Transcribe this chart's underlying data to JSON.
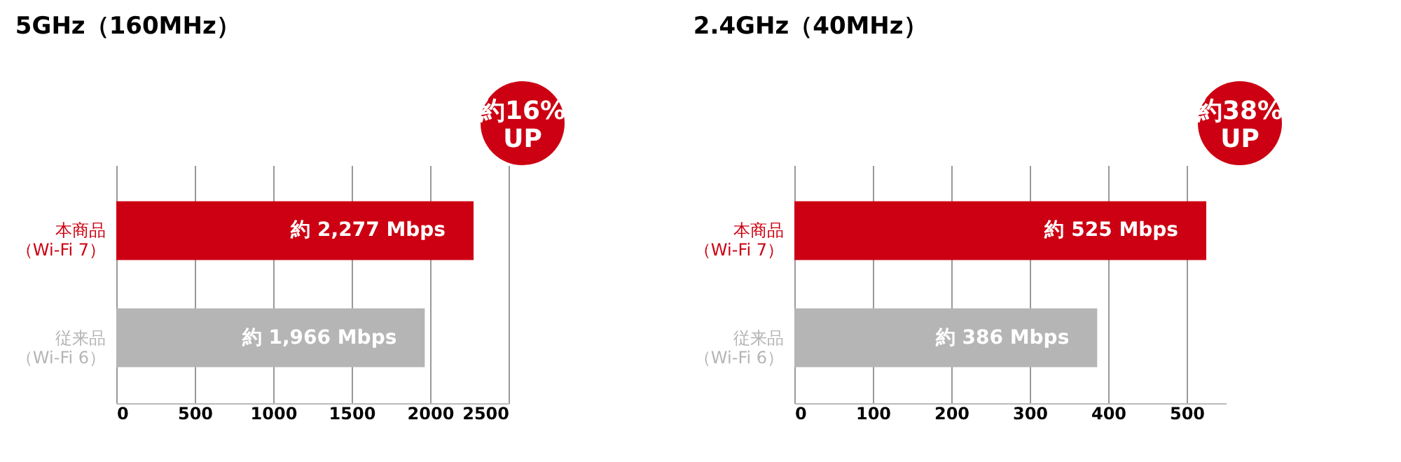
{
  "chart_data": [
    {
      "type": "bar",
      "orientation": "horizontal",
      "title": "5GHz（160MHz）",
      "categories": [
        "本商品（Wi-Fi 7）",
        "従来品（Wi-Fi 6）"
      ],
      "values": [
        2277,
        1966
      ],
      "colors": [
        "#cc0012",
        "#b5b5b5"
      ],
      "value_labels": [
        "約 2,277 Mbps",
        "約 1,966 Mbps"
      ],
      "xlim": [
        0,
        2500
      ],
      "xticks": [
        0,
        500,
        1000,
        1500,
        2000,
        2500
      ],
      "grid": "x",
      "annotations": [
        "約16% UP"
      ]
    },
    {
      "type": "bar",
      "orientation": "horizontal",
      "title": "2.4GHz（40MHz）",
      "categories": [
        "本商品（Wi-Fi 7）",
        "従来品（Wi-Fi 6）"
      ],
      "values": [
        525,
        386
      ],
      "colors": [
        "#cc0012",
        "#b5b5b5"
      ],
      "value_labels": [
        "約 525 Mbps",
        "約 386 Mbps"
      ],
      "xlim": [
        0,
        550
      ],
      "xticks": [
        0,
        100,
        200,
        300,
        400,
        500
      ],
      "grid": "x",
      "annotations": [
        "約38% UP"
      ]
    }
  ]
}
